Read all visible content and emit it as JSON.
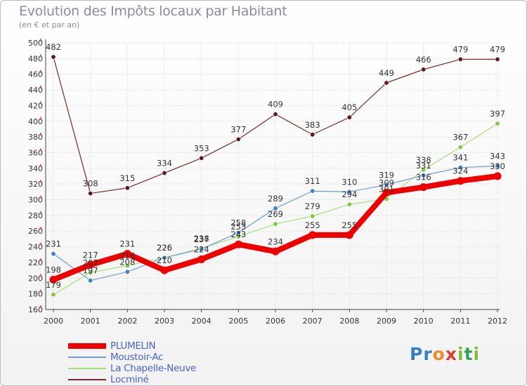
{
  "header": {
    "title": "Evolution des Impôts locaux par Habitant",
    "subtitle": "(en € et par an)"
  },
  "logo": {
    "text": "Proxiti",
    "letters": [
      {
        "ch": "P",
        "color": "#3a7fc1"
      },
      {
        "ch": "r",
        "color": "#3a7fc1"
      },
      {
        "ch": "o",
        "color": "#f08c2a"
      },
      {
        "ch": "x",
        "color": "#e03a3a"
      },
      {
        "ch": "i",
        "color": "#7dbf3c"
      },
      {
        "ch": "t",
        "color": "#3a9f5a"
      },
      {
        "ch": "i",
        "color": "#7dbf3c"
      }
    ]
  },
  "chart_data": {
    "type": "line",
    "title": "Evolution des Impôts locaux par Habitant",
    "subtitle": "(en € et par an)",
    "xlabel": "",
    "ylabel": "",
    "ylim": [
      160,
      500
    ],
    "yticks": [
      160,
      180,
      200,
      220,
      240,
      260,
      280,
      300,
      320,
      340,
      360,
      380,
      400,
      420,
      440,
      460,
      480,
      500
    ],
    "x": [
      "2000",
      "2001",
      "2002",
      "2003",
      "2004",
      "2005",
      "2006",
      "2007",
      "2008",
      "2009",
      "2010",
      "2011",
      "2012"
    ],
    "grid": true,
    "legend_position": "bottom-left",
    "series": [
      {
        "name": "Locminé",
        "color": "#7a2b2b",
        "marker": "#5a1a1a",
        "width": 1.2,
        "values": [
          482,
          308,
          315,
          334,
          353,
          377,
          409,
          383,
          405,
          449,
          466,
          479,
          479
        ]
      },
      {
        "name": "La Chapelle-Neuve",
        "color": "#a6e07a",
        "marker": "#7dc83e",
        "width": 1.2,
        "values": [
          179,
          207,
          216,
          226,
          238,
          253,
          269,
          279,
          294,
          301,
          338,
          367,
          397
        ]
      },
      {
        "name": "Moustoir-Ac",
        "color": "#6e9ccc",
        "marker": "#3d7fc4",
        "width": 1.2,
        "values": [
          231,
          197,
          208,
          226,
          237,
          258,
          289,
          311,
          310,
          319,
          331,
          341,
          343
        ]
      },
      {
        "name": "PLUMELIN",
        "color": "#ee0000",
        "marker": "#ee0000",
        "width": 8,
        "values": [
          198,
          217,
          231,
          210,
          224,
          243,
          234,
          255,
          255,
          309,
          316,
          324,
          330
        ]
      }
    ]
  }
}
